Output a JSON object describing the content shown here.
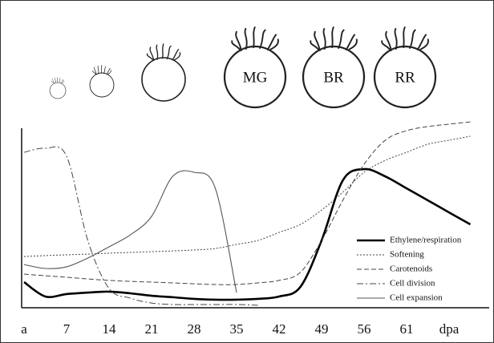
{
  "chart_data": {
    "type": "line",
    "stages": [
      "MG",
      "BR",
      "RR"
    ],
    "categories": [
      "a",
      null,
      "7",
      null,
      "14",
      null,
      "21",
      null,
      "28",
      null,
      "35",
      null,
      "42",
      null,
      "49",
      null,
      "56",
      null,
      "61",
      null,
      "dpa",
      null
    ],
    "ylim": [
      0,
      100
    ],
    "series": [
      {
        "name": "Ethylene/respiration",
        "color": "#000000",
        "line_style": "thick",
        "values": [
          13.3,
          5.6,
          6.9,
          7.7,
          8.2,
          7.3,
          6.0,
          5.2,
          4.3,
          3.9,
          3.9,
          4.3,
          5.6,
          10.7,
          35.6,
          67.8,
          73.8,
          69.9,
          63.5,
          57.1,
          50.6,
          44.2
        ]
      },
      {
        "name": "Softening",
        "color": "#444444",
        "line_style": "dotted",
        "values": [
          27.0,
          27.5,
          27.9,
          28.3,
          28.8,
          29.2,
          29.6,
          30.0,
          30.5,
          31.3,
          33.5,
          35.6,
          39.9,
          44.2,
          51.9,
          61.4,
          72.1,
          78.5,
          82.8,
          87.1,
          89.3,
          91.4
        ]
      },
      {
        "name": "Carotenoids",
        "color": "#444444",
        "line_style": "dashed",
        "values": [
          17.6,
          16.7,
          15.9,
          15.0,
          14.2,
          13.7,
          13.3,
          12.9,
          12.4,
          12.0,
          12.0,
          12.9,
          14.2,
          18.5,
          35.6,
          57.1,
          76.4,
          89.3,
          94.4,
          96.6,
          97.9,
          99.1
        ]
      },
      {
        "name": "Cell division",
        "color": "#444444",
        "line_style": "dash-dot",
        "values": [
          82.8,
          85.0,
          80.7,
          35.6,
          9.9,
          4.7,
          2.1,
          1.3,
          1.3,
          1.3,
          1.3,
          0.9,
          null,
          null,
          null,
          null,
          null,
          null,
          null,
          null,
          null,
          null
        ]
      },
      {
        "name": "Cell expansion",
        "color": "#555555",
        "line_style": "solid",
        "values": [
          22.7,
          20.6,
          21.5,
          26.2,
          32.2,
          38.6,
          48.5,
          70.0,
          72.1,
          63.5,
          7.7,
          null,
          null,
          null,
          null,
          null,
          null,
          null,
          null,
          null,
          null,
          null
        ]
      }
    ]
  }
}
